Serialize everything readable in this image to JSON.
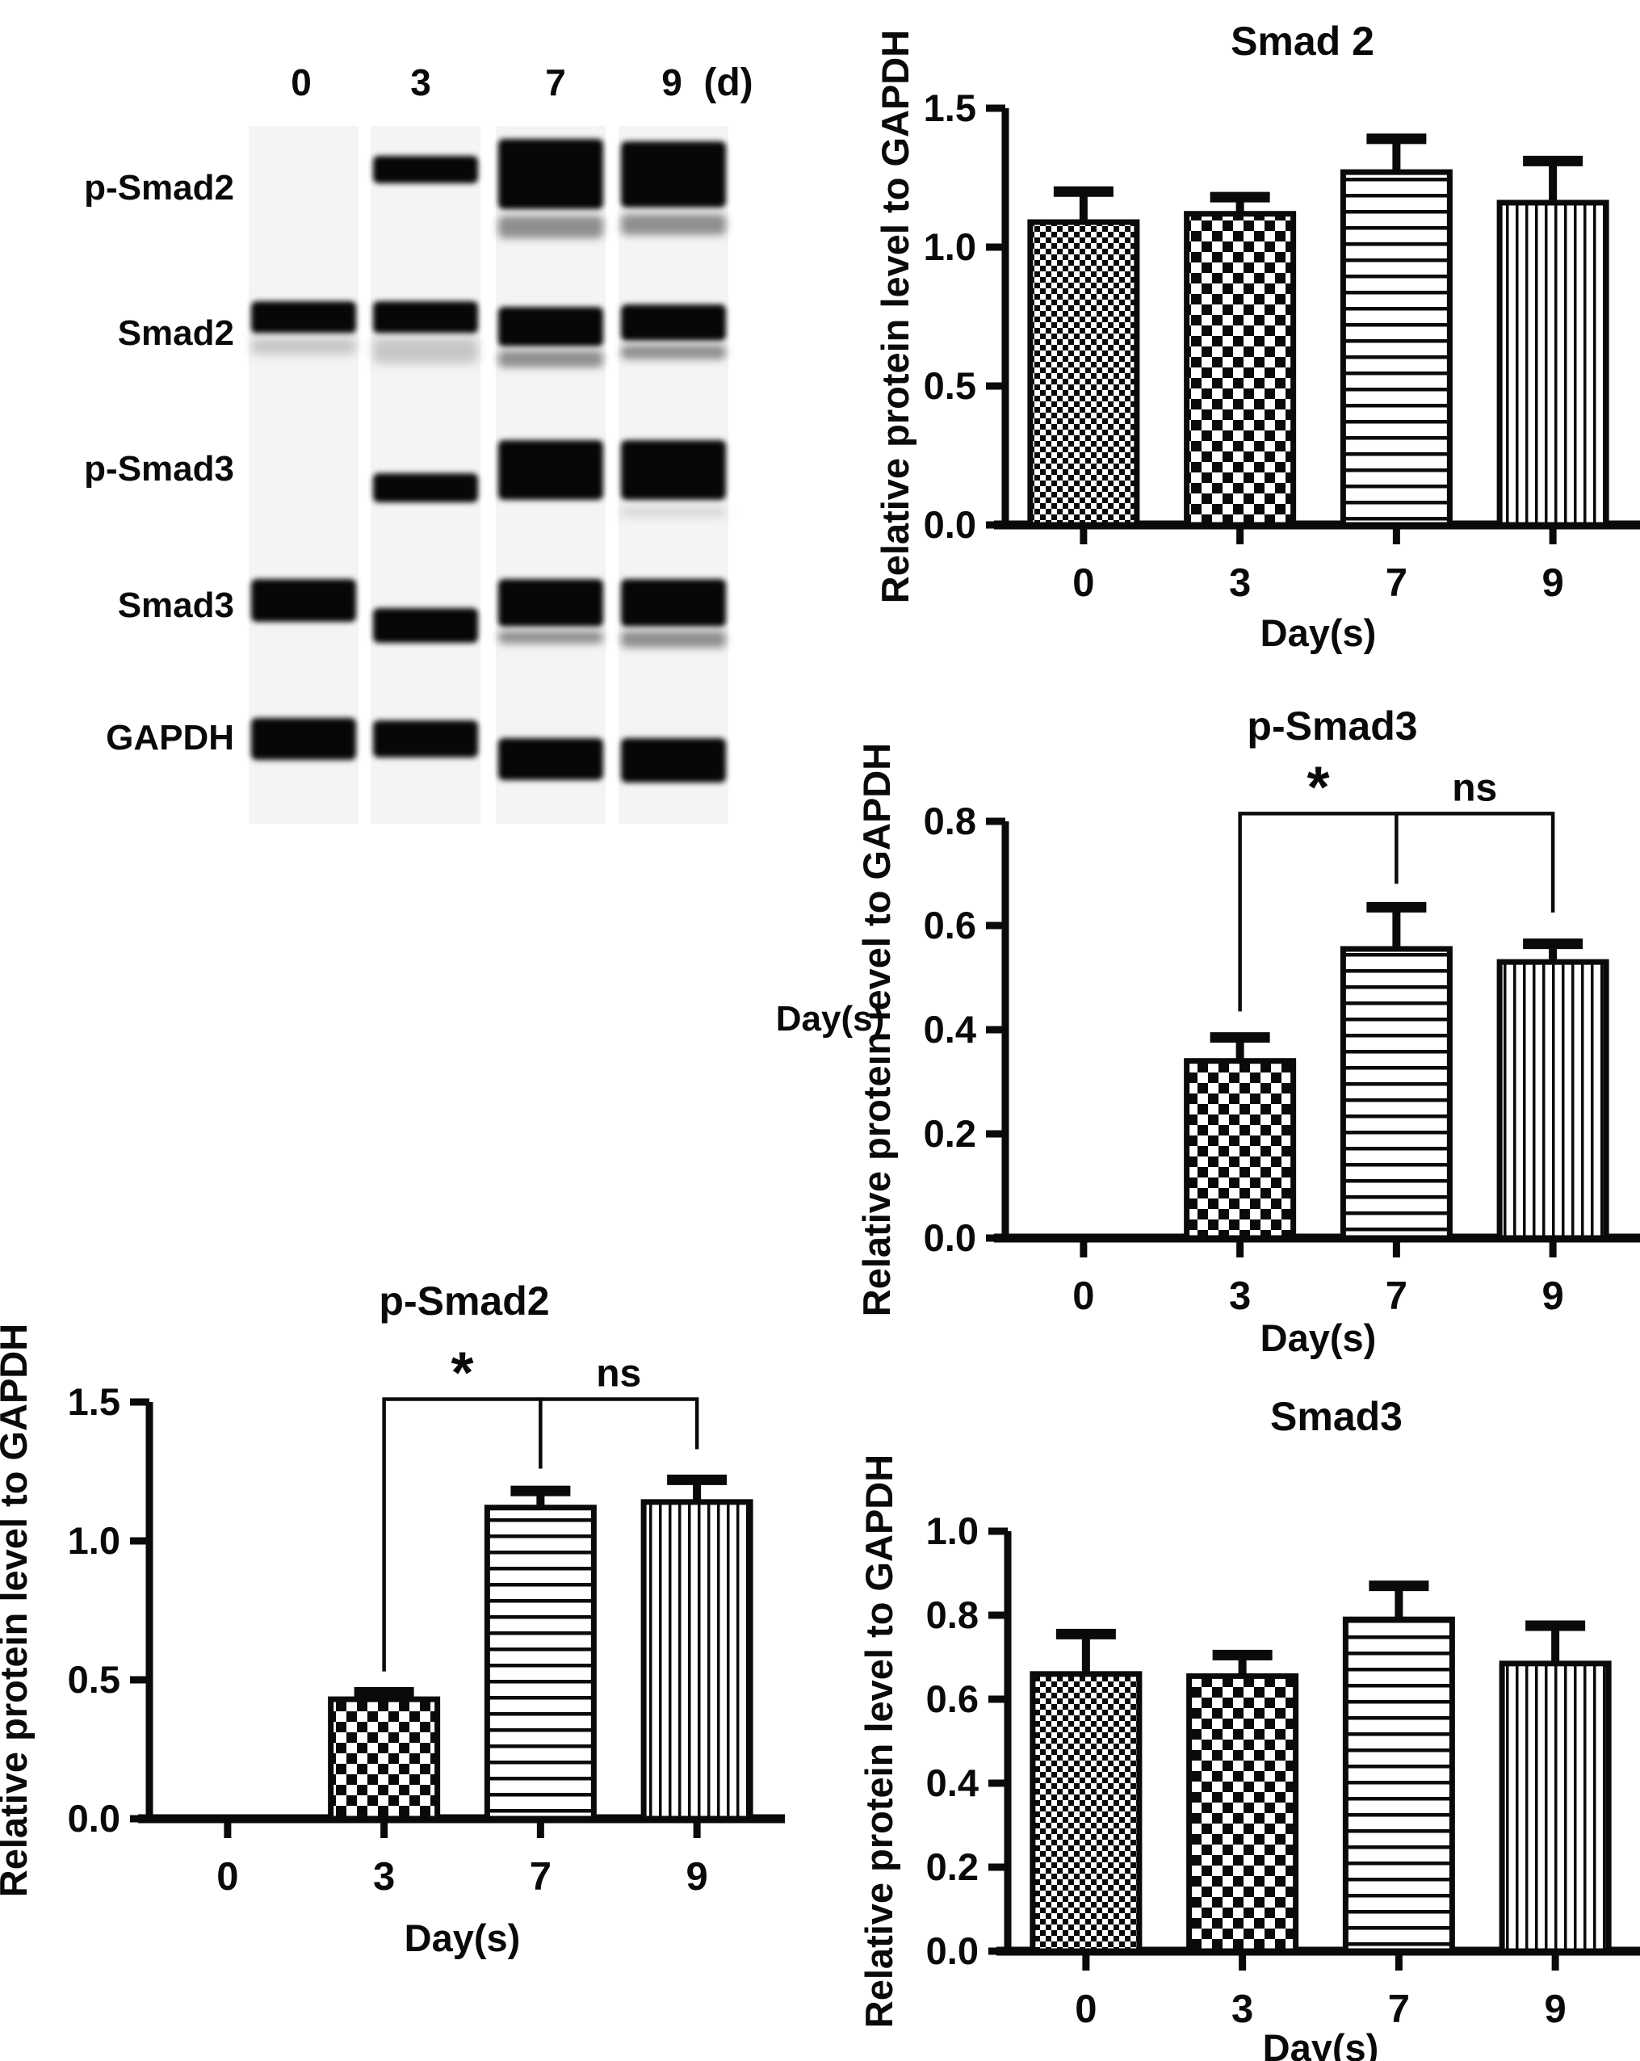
{
  "blot": {
    "lane_labels": [
      "0",
      "3",
      "7",
      "9"
    ],
    "unit_label": "(d)",
    "row_labels": [
      "p-Smad2",
      "Smad2",
      "p-Smad3",
      "Smad3",
      "GAPDH"
    ],
    "bands": [
      {
        "row": "p-Smad2",
        "lane": 1,
        "y": 138,
        "h": 34,
        "tone": "black"
      },
      {
        "row": "p-Smad2",
        "lane": 2,
        "y": 117,
        "h": 87,
        "tone": "black"
      },
      {
        "row": "p-Smad2",
        "lane": 2,
        "y": 212,
        "h": 28,
        "tone": "gray"
      },
      {
        "row": "p-Smad2",
        "lane": 3,
        "y": 120,
        "h": 82,
        "tone": "black"
      },
      {
        "row": "p-Smad2",
        "lane": 3,
        "y": 210,
        "h": 26,
        "tone": "gray"
      },
      {
        "row": "Smad2",
        "lane": 0,
        "y": 318,
        "h": 40,
        "tone": "black"
      },
      {
        "row": "Smad2",
        "lane": 0,
        "y": 363,
        "h": 21,
        "tone": "faint"
      },
      {
        "row": "Smad2",
        "lane": 1,
        "y": 318,
        "h": 40,
        "tone": "black"
      },
      {
        "row": "Smad2",
        "lane": 1,
        "y": 363,
        "h": 32,
        "tone": "faint"
      },
      {
        "row": "Smad2",
        "lane": 2,
        "y": 325,
        "h": 49,
        "tone": "black"
      },
      {
        "row": "Smad2",
        "lane": 2,
        "y": 379,
        "h": 21,
        "tone": "gray"
      },
      {
        "row": "Smad2",
        "lane": 3,
        "y": 322,
        "h": 45,
        "tone": "black"
      },
      {
        "row": "Smad2",
        "lane": 3,
        "y": 372,
        "h": 18,
        "tone": "gray"
      },
      {
        "row": "p-Smad3",
        "lane": 1,
        "y": 531,
        "h": 36,
        "tone": "black"
      },
      {
        "row": "p-Smad3",
        "lane": 2,
        "y": 490,
        "h": 74,
        "tone": "black"
      },
      {
        "row": "p-Smad3",
        "lane": 3,
        "y": 490,
        "h": 74,
        "tone": "black"
      },
      {
        "row": "p-Smad3",
        "lane": 3,
        "y": 575,
        "h": 8,
        "tone": "faint"
      },
      {
        "row": "Smad3",
        "lane": 0,
        "y": 662,
        "h": 53,
        "tone": "black"
      },
      {
        "row": "Smad3",
        "lane": 1,
        "y": 698,
        "h": 43,
        "tone": "black"
      },
      {
        "row": "Smad3",
        "lane": 2,
        "y": 662,
        "h": 59,
        "tone": "black"
      },
      {
        "row": "Smad3",
        "lane": 2,
        "y": 726,
        "h": 16,
        "tone": "gray"
      },
      {
        "row": "Smad3",
        "lane": 3,
        "y": 662,
        "h": 59,
        "tone": "black"
      },
      {
        "row": "Smad3",
        "lane": 3,
        "y": 726,
        "h": 21,
        "tone": "gray"
      },
      {
        "row": "GAPDH",
        "lane": 0,
        "y": 834,
        "h": 52,
        "tone": "black"
      },
      {
        "row": "GAPDH",
        "lane": 1,
        "y": 837,
        "h": 46,
        "tone": "black"
      },
      {
        "row": "GAPDH",
        "lane": 2,
        "y": 859,
        "h": 52,
        "tone": "black"
      },
      {
        "row": "GAPDH",
        "lane": 3,
        "y": 859,
        "h": 55,
        "tone": "black"
      }
    ]
  },
  "chart_data": [
    {
      "id": "smad2",
      "type": "bar",
      "title": "Smad 2",
      "xlabel": "Day(s)",
      "ylabel": "Relative protein level to GAPDH",
      "categories": [
        "0",
        "3",
        "7",
        "9"
      ],
      "values": [
        1.09,
        1.12,
        1.27,
        1.16
      ],
      "errors": [
        0.11,
        0.06,
        0.12,
        0.15
      ],
      "patterns": [
        "checker-fine",
        "checker-coarse",
        "hlines",
        "vlines"
      ],
      "ylim": [
        0,
        1.5
      ],
      "yticks": [
        0.0,
        0.5,
        1.0,
        1.5
      ],
      "grid": false,
      "legend": null,
      "significance": []
    },
    {
      "id": "psmad3",
      "type": "bar",
      "title": "p-Smad3",
      "xlabel": "Day(s)",
      "ylabel": "Relative proteın ıevel to GAPDH",
      "stray_label": "Day(s)",
      "categories": [
        "0",
        "3",
        "7",
        "9"
      ],
      "values": [
        0,
        0.34,
        0.555,
        0.53
      ],
      "errors": [
        0,
        0.045,
        0.08,
        0.035
      ],
      "patterns": [
        "checker-fine",
        "checker-coarse",
        "hlines",
        "vlines"
      ],
      "ylim": [
        0,
        0.8
      ],
      "yticks": [
        0.0,
        0.2,
        0.4,
        0.6,
        0.8
      ],
      "grid": false,
      "legend": null,
      "significance": [
        {
          "label": "*",
          "from": 1,
          "to": 2,
          "bar_value": 0.815,
          "from_drop_to": 0.435,
          "to_drop_to": 0.68
        },
        {
          "label": "ns",
          "from": 2,
          "to": 3,
          "bar_value": 0.815,
          "from_drop_to": null,
          "to_drop_to": 0.625
        }
      ]
    },
    {
      "id": "psmad2",
      "type": "bar",
      "title": "p-Smad2",
      "xlabel": "Day(s)",
      "ylabel": "Relative protein level to GAPDH",
      "categories": [
        "0",
        "3",
        "7",
        "9"
      ],
      "values": [
        0,
        0.43,
        1.12,
        1.14
      ],
      "errors": [
        0,
        0.025,
        0.06,
        0.08
      ],
      "patterns": [
        "checker-fine",
        "checker-coarse",
        "hlines",
        "vlines"
      ],
      "ylim": [
        0,
        1.5
      ],
      "yticks": [
        0.0,
        0.5,
        1.0,
        1.5
      ],
      "grid": false,
      "legend": null,
      "significance": [
        {
          "label": "*",
          "from": 1,
          "to": 2,
          "bar_value": 1.51,
          "from_drop_to": 0.53,
          "to_drop_to": 1.26
        },
        {
          "label": "ns",
          "from": 2,
          "to": 3,
          "bar_value": 1.51,
          "from_drop_to": null,
          "to_drop_to": 1.33
        }
      ]
    },
    {
      "id": "smad3",
      "type": "bar",
      "title": "Smad3",
      "xlabel": "Day(s)",
      "ylabel": "Relative protein level to GAPDH",
      "categories": [
        "0",
        "3",
        "7",
        "9"
      ],
      "values": [
        0.66,
        0.655,
        0.79,
        0.685
      ],
      "errors": [
        0.095,
        0.05,
        0.08,
        0.09
      ],
      "patterns": [
        "checker-fine",
        "checker-coarse",
        "hlines",
        "vlines"
      ],
      "ylim": [
        0,
        1.0
      ],
      "yticks": [
        0.0,
        0.2,
        0.4,
        0.6,
        0.8,
        1.0
      ],
      "grid": false,
      "legend": null,
      "significance": []
    }
  ]
}
